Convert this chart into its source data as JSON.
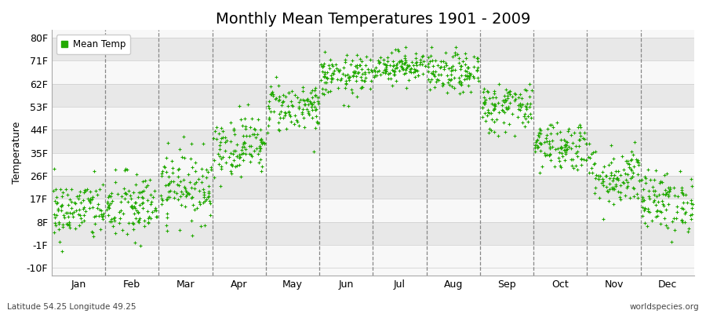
{
  "title": "Monthly Mean Temperatures 1901 - 2009",
  "ylabel": "Temperature",
  "xlabel_bottom_left": "Latitude 54.25 Longitude 49.25",
  "xlabel_bottom_right": "worldspecies.org",
  "legend_label": "Mean Temp",
  "dot_color": "#22aa00",
  "background_color": "#ffffff",
  "plot_bg_color": "#f0f0f0",
  "stripe_color_light": "#f8f8f8",
  "stripe_color_dark": "#e8e8e8",
  "ytick_labels": [
    "-10F",
    "-1F",
    "8F",
    "17F",
    "26F",
    "35F",
    "44F",
    "53F",
    "62F",
    "71F",
    "80F"
  ],
  "ytick_values": [
    -10,
    -1,
    8,
    17,
    26,
    35,
    44,
    53,
    62,
    71,
    80
  ],
  "ylim": [
    -13,
    83
  ],
  "months": [
    "Jan",
    "Feb",
    "Mar",
    "Apr",
    "May",
    "Jun",
    "Jul",
    "Aug",
    "Sep",
    "Oct",
    "Nov",
    "Dec"
  ],
  "month_mean_F": [
    12.5,
    13.5,
    22,
    38,
    53,
    65,
    69,
    66,
    53,
    38,
    26,
    16
  ],
  "month_std_F": [
    6,
    7,
    7,
    6,
    5,
    4,
    3,
    4,
    5,
    5,
    6,
    6
  ],
  "n_years": 109,
  "title_fontsize": 14,
  "axis_fontsize": 9,
  "tick_fontsize": 9,
  "legend_fontsize": 8.5
}
